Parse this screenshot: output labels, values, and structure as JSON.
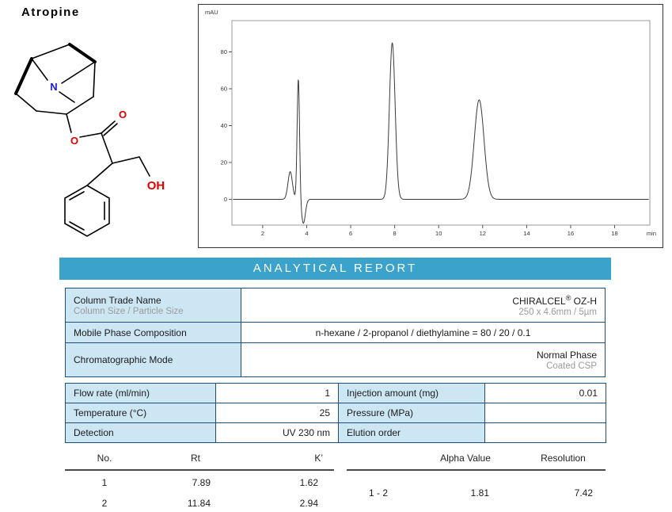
{
  "compound": {
    "name": "Atropine",
    "atoms": {
      "n": "N",
      "ester_o": "O",
      "carbonyl_o": "O",
      "hydroxyl": "OH"
    }
  },
  "report": {
    "title": "ANALYTICAL REPORT"
  },
  "colors": {
    "banner": "#3AA2CB",
    "table_border": "#1F4E79",
    "label_cell_bg": "#CCE6F4",
    "atom_nitrogen": "#1A1AE0",
    "atom_oxygen": "#E00000",
    "muted_text": "#9B9B9B"
  },
  "chart_data": {
    "type": "line",
    "title": "",
    "ylabel": "mAU",
    "xlabel": "min",
    "x_ticks": [
      2,
      4,
      6,
      8,
      10,
      12,
      14,
      16,
      18
    ],
    "y_ticks": [
      0,
      20,
      40,
      60,
      80
    ],
    "xlim": [
      0.6,
      19.6
    ],
    "ylim": [
      -14,
      97
    ],
    "baseline": 0,
    "grid": false,
    "legend": false,
    "peaks": [
      {
        "center": 3.25,
        "height": 15,
        "width": 0.1
      },
      {
        "center": 3.62,
        "height": 66,
        "width": 0.055
      },
      {
        "center": 3.85,
        "height": -13,
        "width": 0.09
      },
      {
        "center": 7.89,
        "height": 85,
        "width": 0.13
      },
      {
        "center": 11.84,
        "height": 54,
        "width": 0.22
      }
    ]
  },
  "table1": {
    "rows": [
      {
        "label": "Column Trade Name",
        "sublabel": "Column Size / Particle Size",
        "value_brand": "CHIRALCEL",
        "value_reg": "®",
        "value_model": " OZ-H",
        "subvalue": "250 x 4.6mm / 5µm"
      },
      {
        "label": "Mobile Phase Composition",
        "value": "n-hexane / 2-propanol / diethylamine = 80 / 20 / 0.1"
      },
      {
        "label": "Chromatographic Mode",
        "value": "Normal Phase",
        "subvalue": "Coated CSP"
      }
    ]
  },
  "table2": {
    "rows": [
      {
        "l1": "Flow rate (ml/min)",
        "v1": "1",
        "l2": "Injection amount (mg)",
        "v2": "0.01"
      },
      {
        "l1": "Temperature (°C)",
        "v1": "25",
        "l2": "Pressure (MPa)",
        "v2": ""
      },
      {
        "l1": "Detection",
        "v1": "UV 230 nm",
        "l2": "Elution order",
        "v2": ""
      }
    ]
  },
  "results": {
    "left": {
      "headers": [
        "No.",
        "Rt",
        "K’"
      ],
      "rows": [
        [
          "1",
          "7.89",
          "1.62"
        ],
        [
          "2",
          "11.84",
          "2.94"
        ]
      ]
    },
    "right": {
      "headers": [
        "",
        "Alpha Value",
        "Resolution"
      ],
      "rows": [
        [
          "1 - 2",
          "1.81",
          "7.42"
        ]
      ]
    }
  }
}
